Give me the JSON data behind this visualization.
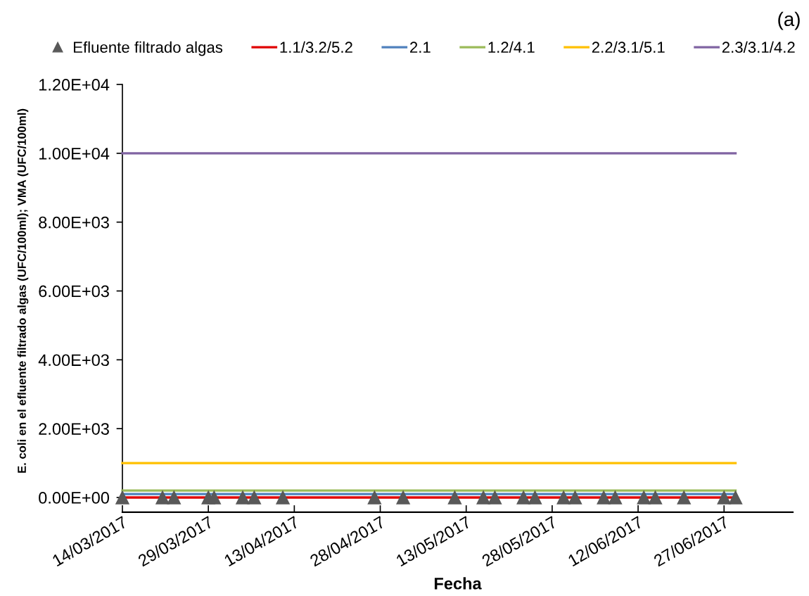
{
  "chart_data": {
    "type": "line",
    "annotations": [
      "(a)"
    ],
    "xlabel": "Fecha",
    "ylabel": "E. coli en el efluente filtrado algas (UFC/100ml); VMA (UFC/100ml)",
    "xlim": [
      "2017-03-14",
      "2017-07-09"
    ],
    "xticks": [
      {
        "value": "2017-03-14",
        "label": "14/03/2017"
      },
      {
        "value": "2017-03-29",
        "label": "29/03/2017"
      },
      {
        "value": "2017-04-13",
        "label": "13/04/2017"
      },
      {
        "value": "2017-04-28",
        "label": "28/04/2017"
      },
      {
        "value": "2017-05-13",
        "label": "13/05/2017"
      },
      {
        "value": "2017-05-28",
        "label": "28/05/2017"
      },
      {
        "value": "2017-06-12",
        "label": "12/06/2017"
      },
      {
        "value": "2017-06-27",
        "label": "27/06/2017"
      }
    ],
    "ylim": [
      0,
      12000
    ],
    "yticks": [
      {
        "value": 0,
        "label": "0.00E+00"
      },
      {
        "value": 2000,
        "label": "2.00E+03"
      },
      {
        "value": 4000,
        "label": "4.00E+03"
      },
      {
        "value": 6000,
        "label": "6.00E+03"
      },
      {
        "value": 8000,
        "label": "8.00E+03"
      },
      {
        "value": 10000,
        "label": "1.00E+04"
      },
      {
        "value": 12000,
        "label": "1.20E+04"
      }
    ],
    "legend": "top",
    "series": [
      {
        "name": "Efluente filtrado algas",
        "type": "scatter",
        "marker": "triangle",
        "color": "#595959",
        "x": [
          "2017-03-14",
          "2017-03-21",
          "2017-03-23",
          "2017-03-29",
          "2017-03-30",
          "2017-04-04",
          "2017-04-06",
          "2017-04-11",
          "2017-04-27",
          "2017-05-02",
          "2017-05-11",
          "2017-05-16",
          "2017-05-18",
          "2017-05-23",
          "2017-05-25",
          "2017-05-30",
          "2017-06-01",
          "2017-06-06",
          "2017-06-08",
          "2017-06-13",
          "2017-06-15",
          "2017-06-20",
          "2017-06-27",
          "2017-06-29"
        ],
        "values": [
          0,
          0,
          0,
          0,
          0,
          0,
          0,
          0,
          0,
          0,
          0,
          0,
          0,
          0,
          0,
          0,
          0,
          0,
          0,
          0,
          0,
          0,
          0,
          0
        ]
      },
      {
        "name": "1.1/3.2/5.2",
        "marker": "none",
        "color": "#e00000",
        "x": [
          "2017-03-14",
          "2017-06-29"
        ],
        "values": [
          0,
          0
        ]
      },
      {
        "name": "2.1",
        "marker": "none",
        "color": "#4f81bd",
        "x": [
          "2017-03-14",
          "2017-06-29"
        ],
        "values": [
          100,
          100
        ]
      },
      {
        "name": "1.2/4.1",
        "marker": "none",
        "color": "#9bbb59",
        "x": [
          "2017-03-14",
          "2017-06-29"
        ],
        "values": [
          200,
          200
        ]
      },
      {
        "name": "2.2/3.1/5.1",
        "marker": "none",
        "color": "#ffc000",
        "x": [
          "2017-03-14",
          "2017-06-29"
        ],
        "values": [
          1000,
          1000
        ]
      },
      {
        "name": "2.3/3.1/4.2",
        "marker": "none",
        "color": "#8064a2",
        "x": [
          "2017-03-14",
          "2017-06-29"
        ],
        "values": [
          10000,
          10000
        ]
      }
    ]
  }
}
